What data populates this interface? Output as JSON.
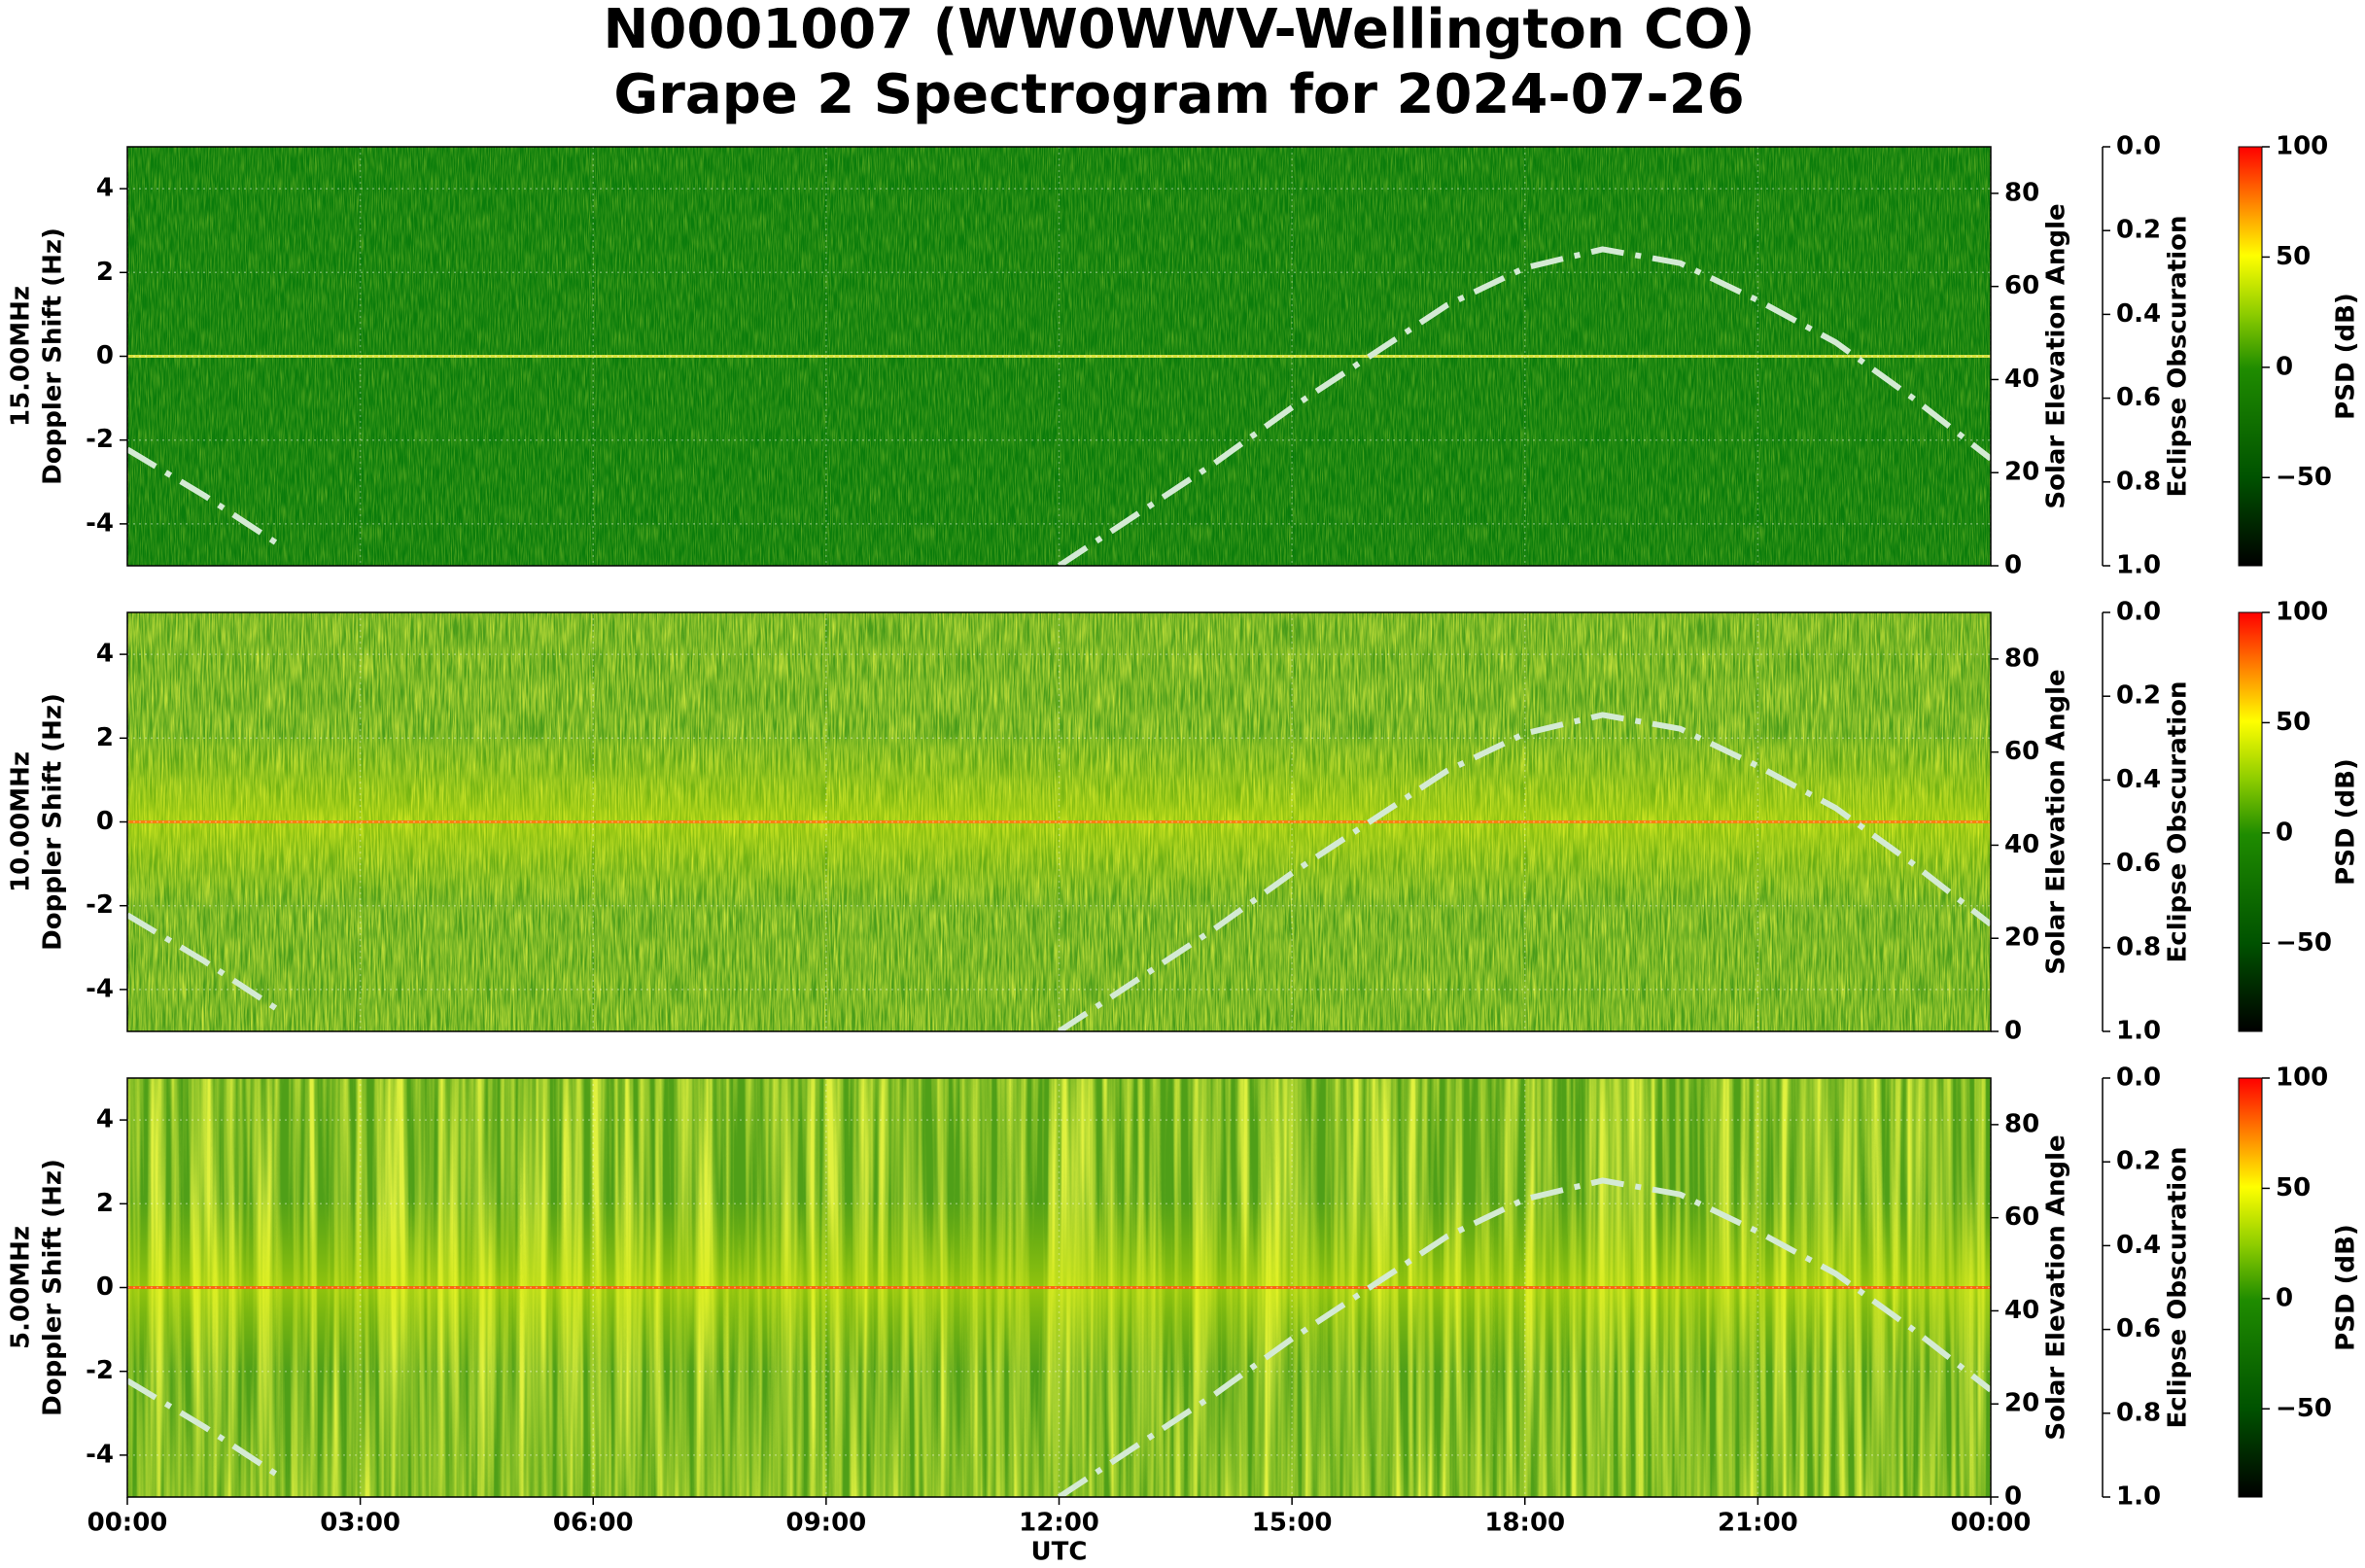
{
  "title": [
    "N0001007 (WW0WWV-Wellington CO)",
    "Grape 2 Spectrogram for 2024-07-26"
  ],
  "xaxis": {
    "label": "UTC",
    "xlim": [
      0,
      24
    ],
    "xticks": [
      {
        "value": 0,
        "label": "00:00"
      },
      {
        "value": 3,
        "label": "03:00"
      },
      {
        "value": 6,
        "label": "06:00"
      },
      {
        "value": 9,
        "label": "09:00"
      },
      {
        "value": 12,
        "label": "12:00"
      },
      {
        "value": 15,
        "label": "15:00"
      },
      {
        "value": 18,
        "label": "18:00"
      },
      {
        "value": 21,
        "label": "21:00"
      },
      {
        "value": 24,
        "label": "00:00"
      }
    ]
  },
  "chart_data": [
    {
      "type": "spectrogram",
      "ylabel": [
        "15.00MHz",
        "Doppler Shift (Hz)"
      ],
      "ylim": [
        -5,
        5
      ],
      "yticks": [
        -4,
        -2,
        0,
        2,
        4
      ],
      "grid": true,
      "y2label": "Solar Elevation Angle",
      "y2lim": [
        0,
        90
      ],
      "y2ticks": [
        0,
        20,
        40,
        60,
        80
      ],
      "y3label": "Eclipse Obscuration",
      "y3lim": [
        1,
        0
      ],
      "y3ticks": [
        {
          "value": 0,
          "label": "0.0"
        },
        {
          "value": 0.2,
          "label": "0.2"
        },
        {
          "value": 0.4,
          "label": "0.4"
        },
        {
          "value": 0.6,
          "label": "0.6"
        },
        {
          "value": 0.8,
          "label": "0.8"
        },
        {
          "value": 1,
          "label": "1.0"
        }
      ],
      "colorbar": {
        "label": "PSD (dB)",
        "clim": [
          -90,
          100
        ],
        "ticks": [
          {
            "value": -50,
            "label": "−50"
          },
          0,
          50,
          100
        ]
      },
      "solar": {
        "color": "#d4ead4",
        "x": [
          0,
          1,
          2,
          3,
          4,
          5,
          6,
          7,
          8,
          9,
          10,
          11,
          12,
          13,
          14,
          15,
          16,
          17,
          18,
          19,
          20,
          21,
          22,
          23,
          24
        ],
        "values": [
          25,
          15,
          4,
          null,
          null,
          null,
          null,
          null,
          null,
          null,
          null,
          null,
          0,
          11,
          22,
          34,
          45,
          56,
          64,
          68,
          65,
          57,
          48,
          36,
          23
        ]
      }
    },
    {
      "type": "spectrogram",
      "ylabel": [
        "10.00MHz",
        "Doppler Shift (Hz)"
      ],
      "ylim": [
        -5,
        5
      ],
      "yticks": [
        -4,
        -2,
        0,
        2,
        4
      ],
      "grid": true,
      "y2label": "Solar Elevation Angle",
      "y2lim": [
        0,
        90
      ],
      "y2ticks": [
        0,
        20,
        40,
        60,
        80
      ],
      "y3label": "Eclipse Obscuration",
      "y3lim": [
        1,
        0
      ],
      "y3ticks": [
        {
          "value": 0,
          "label": "0.0"
        },
        {
          "value": 0.2,
          "label": "0.2"
        },
        {
          "value": 0.4,
          "label": "0.4"
        },
        {
          "value": 0.6,
          "label": "0.6"
        },
        {
          "value": 0.8,
          "label": "0.8"
        },
        {
          "value": 1,
          "label": "1.0"
        }
      ],
      "colorbar": {
        "label": "PSD (dB)",
        "clim": [
          -90,
          100
        ],
        "ticks": [
          {
            "value": -50,
            "label": "−50"
          },
          0,
          50,
          100
        ]
      },
      "solar": {
        "color": "#d4ead4",
        "x": [
          0,
          1,
          2,
          3,
          4,
          5,
          6,
          7,
          8,
          9,
          10,
          11,
          12,
          13,
          14,
          15,
          16,
          17,
          18,
          19,
          20,
          21,
          22,
          23,
          24
        ],
        "values": [
          25,
          15,
          4,
          null,
          null,
          null,
          null,
          null,
          null,
          null,
          null,
          null,
          0,
          11,
          22,
          34,
          45,
          56,
          64,
          68,
          65,
          57,
          48,
          36,
          23
        ]
      }
    },
    {
      "type": "spectrogram",
      "ylabel": [
        "5.00MHz",
        "Doppler Shift (Hz)"
      ],
      "ylim": [
        -5,
        5
      ],
      "yticks": [
        -4,
        -2,
        0,
        2,
        4
      ],
      "grid": true,
      "y2label": "Solar Elevation Angle",
      "y2lim": [
        0,
        90
      ],
      "y2ticks": [
        0,
        20,
        40,
        60,
        80
      ],
      "y3label": "Eclipse Obscuration",
      "y3lim": [
        1,
        0
      ],
      "y3ticks": [
        {
          "value": 0,
          "label": "0.0"
        },
        {
          "value": 0.2,
          "label": "0.2"
        },
        {
          "value": 0.4,
          "label": "0.4"
        },
        {
          "value": 0.6,
          "label": "0.6"
        },
        {
          "value": 0.8,
          "label": "0.8"
        },
        {
          "value": 1,
          "label": "1.0"
        }
      ],
      "colorbar": {
        "label": "PSD (dB)",
        "clim": [
          -90,
          100
        ],
        "ticks": [
          {
            "value": -50,
            "label": "−50"
          },
          0,
          50,
          100
        ]
      },
      "solar": {
        "color": "#d4ead4",
        "x": [
          0,
          1,
          2,
          3,
          4,
          5,
          6,
          7,
          8,
          9,
          10,
          11,
          12,
          13,
          14,
          15,
          16,
          17,
          18,
          19,
          20,
          21,
          22,
          23,
          24
        ],
        "values": [
          25,
          15,
          4,
          null,
          null,
          null,
          null,
          null,
          null,
          null,
          null,
          null,
          0,
          11,
          22,
          34,
          45,
          56,
          64,
          68,
          65,
          57,
          48,
          36,
          23
        ]
      }
    }
  ]
}
